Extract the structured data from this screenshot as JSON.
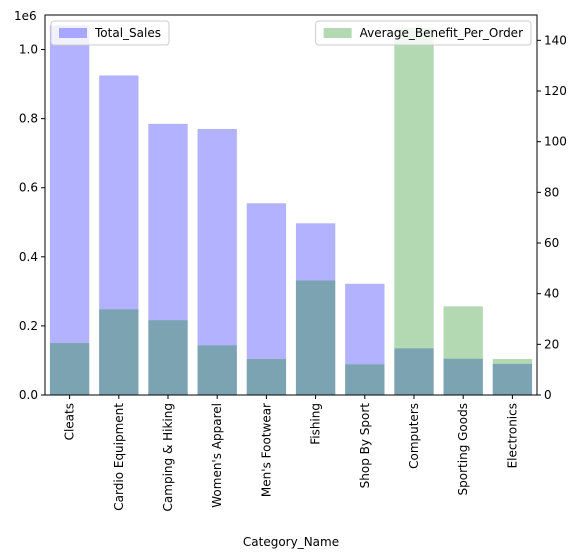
{
  "chart_data": {
    "type": "bar",
    "xlabel": "Category_Name",
    "categories": [
      "Cleats",
      "Cardio Equipment",
      "Camping & Hiking",
      "Women's Apparel",
      "Men's Footwear",
      "Fishing",
      "Shop By Sport",
      "Computers",
      "Sporting Goods",
      "Electronics"
    ],
    "y_offset_label": "1e6",
    "left_axis": {
      "ylim": [
        0,
        1.1
      ],
      "ticks": [
        0.0,
        0.2,
        0.4,
        0.6,
        0.8,
        1.0
      ],
      "tick_labels": [
        "0.0",
        "0.2",
        "0.4",
        "0.6",
        "0.8",
        "1.0"
      ]
    },
    "right_axis": {
      "ylim": [
        0,
        150
      ],
      "ticks": [
        0,
        20,
        40,
        60,
        80,
        100,
        120,
        140
      ],
      "tick_labels": [
        "0",
        "20",
        "40",
        "60",
        "80",
        "100",
        "120",
        "140"
      ]
    },
    "series": [
      {
        "name": "Total_Sales",
        "axis": "left",
        "color": "#0000ff",
        "alpha": 0.3,
        "values": [
          1070000,
          925000,
          785000,
          770000,
          555000,
          497000,
          322000,
          135000,
          105000,
          90000
        ]
      },
      {
        "name": "Average_Benefit_Per_Order",
        "axis": "right",
        "color": "#008000",
        "alpha": 0.3,
        "values": [
          20.5,
          33.8,
          29.5,
          19.6,
          14.2,
          45.2,
          12.1,
          145,
          35,
          14.2
        ]
      }
    ],
    "legends": [
      {
        "series": "Total_Sales",
        "placement": "upper left"
      },
      {
        "series": "Average_Benefit_Per_Order",
        "placement": "upper right"
      }
    ],
    "grid": false
  }
}
